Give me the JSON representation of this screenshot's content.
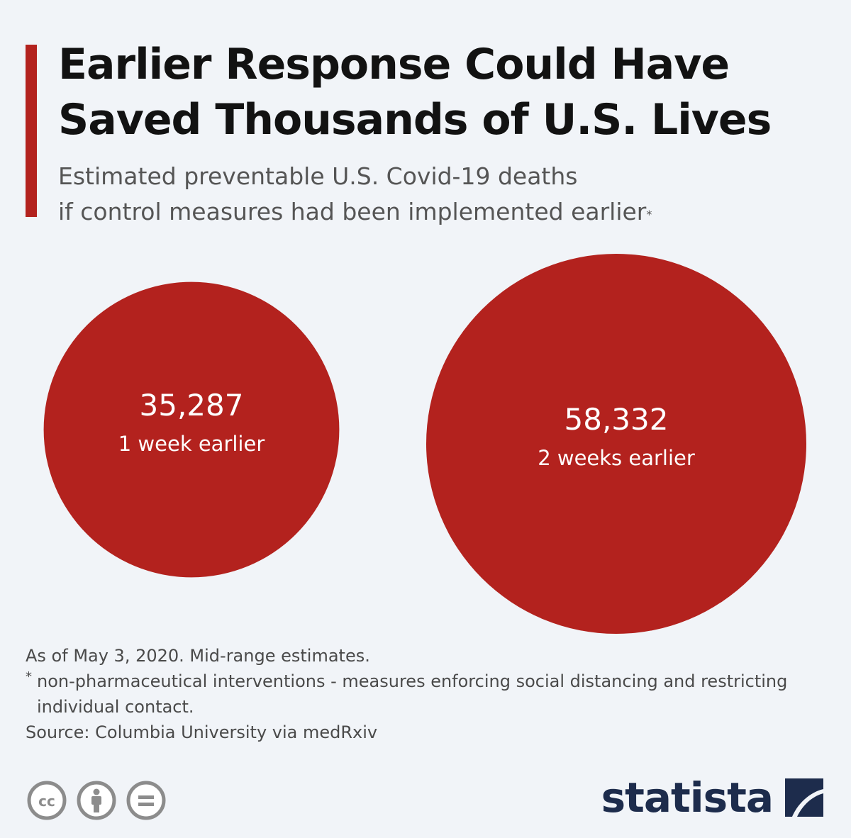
{
  "header": {
    "title_line1": "Earlier Response Could Have",
    "title_line2": "Saved Thousands of U.S. Lives",
    "subtitle_line1": "Estimated preventable U.S. Covid-19 deaths",
    "subtitle_line2": "if control measures had been implemented earlier",
    "subtitle_marker": "*"
  },
  "colors": {
    "accent": "#b3221e",
    "background": "#f1f4f8",
    "brand": "#1d2c4c"
  },
  "chart_data": {
    "type": "bubble",
    "title": "Earlier Response Could Have Saved Thousands of U.S. Lives",
    "subtitle": "Estimated preventable U.S. Covid-19 deaths if control measures had been implemented earlier*",
    "categories": [
      "1 week earlier",
      "2 weeks earlier"
    ],
    "values": [
      35287,
      58332
    ],
    "value_labels": [
      "35,287",
      "58,332"
    ],
    "unit": "deaths",
    "area_proportional": true
  },
  "notes": {
    "as_of": "As of May 3, 2020. Mid-range estimates.",
    "footnote_marker": "*",
    "footnote_text": "non-pharmaceutical interventions - measures enforcing social distancing and restricting individual contact.",
    "source": "Source: Columbia University via medRxiv"
  },
  "footer": {
    "license_icons": [
      "cc-icon",
      "attribution-icon",
      "no-derivatives-icon"
    ],
    "brand_name": "statista"
  }
}
